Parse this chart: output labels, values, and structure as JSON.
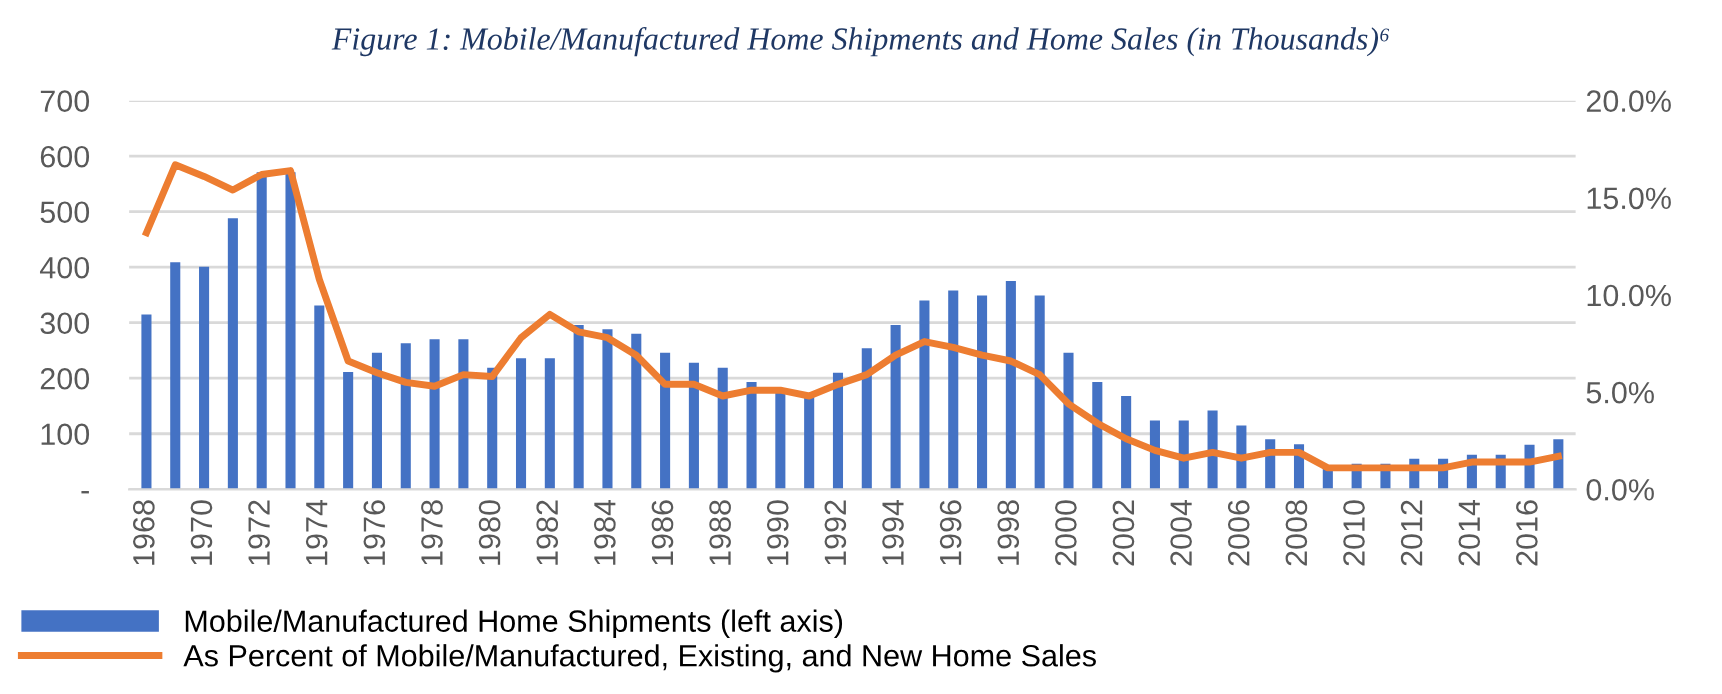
{
  "chart_data": {
    "type": "bar",
    "title": "Figure 1: Mobile/Manufactured Home Shipments and Home Sales (in Thousands)⁶",
    "categories": [
      "1968",
      null,
      "1970",
      null,
      "1972",
      null,
      "1974",
      null,
      "1976",
      null,
      "1978",
      null,
      "1980",
      null,
      "1982",
      null,
      "1984",
      null,
      "1986",
      null,
      "1988",
      null,
      "1990",
      null,
      "1992",
      null,
      "1994",
      null,
      "1996",
      null,
      "1998",
      null,
      "2000",
      null,
      "2002",
      null,
      "2004",
      null,
      "2006",
      null,
      "2008",
      null,
      "2010",
      null,
      "2012",
      null,
      "2014",
      null,
      "2016",
      null
    ],
    "series": [
      {
        "name": "Mobile/Manufactured Home Shipments (left axis)",
        "color": "#4472c4",
        "values": [
          315,
          409,
          401,
          488,
          571,
          571,
          331,
          211,
          246,
          263,
          270,
          270,
          219,
          236,
          236,
          296,
          288,
          280,
          246,
          228,
          219,
          193,
          178,
          168,
          210,
          254,
          296,
          340,
          358,
          349,
          375,
          349,
          246,
          193,
          168,
          124,
          124,
          142,
          115,
          90,
          81,
          40,
          46,
          46,
          55,
          55,
          62,
          62,
          80,
          90
        ]
      },
      {
        "name": "As Percent of Mobile/Manufactured, Existing, and New Home Sales",
        "type": "line",
        "axis": "y2",
        "color": "#ed7d31",
        "values": [
          13.2,
          16.7,
          16.1,
          15.4,
          16.2,
          16.4,
          10.8,
          6.6,
          6.0,
          5.5,
          5.3,
          5.9,
          5.8,
          7.8,
          9.0,
          8.1,
          7.8,
          6.9,
          5.4,
          5.4,
          4.8,
          5.1,
          5.1,
          4.8,
          5.4,
          5.9,
          6.9,
          7.6,
          7.3,
          6.9,
          6.6,
          5.9,
          4.4,
          3.4,
          2.6,
          2.0,
          1.6,
          1.9,
          1.6,
          1.9,
          1.9,
          1.1,
          1.1,
          1.1,
          1.1,
          1.1,
          1.4,
          1.4,
          1.4,
          1.7
        ]
      }
    ],
    "ylim": [
      0,
      700
    ],
    "yticks": [
      {
        "value": 0,
        "label": "-"
      },
      100,
      200,
      300,
      400,
      500,
      600,
      700
    ],
    "y2lim": [
      0,
      20
    ],
    "y2ticks": [
      {
        "value": 0,
        "label": "0.0%"
      },
      {
        "value": 5,
        "label": "5.0%"
      },
      {
        "value": 10,
        "label": "10.0%"
      },
      {
        "value": 15,
        "label": "15.0%"
      },
      {
        "value": 20,
        "label": "20.0%"
      }
    ],
    "grid": "y",
    "legend": "bottom left",
    "marker": "none",
    "line_style": "solid"
  }
}
